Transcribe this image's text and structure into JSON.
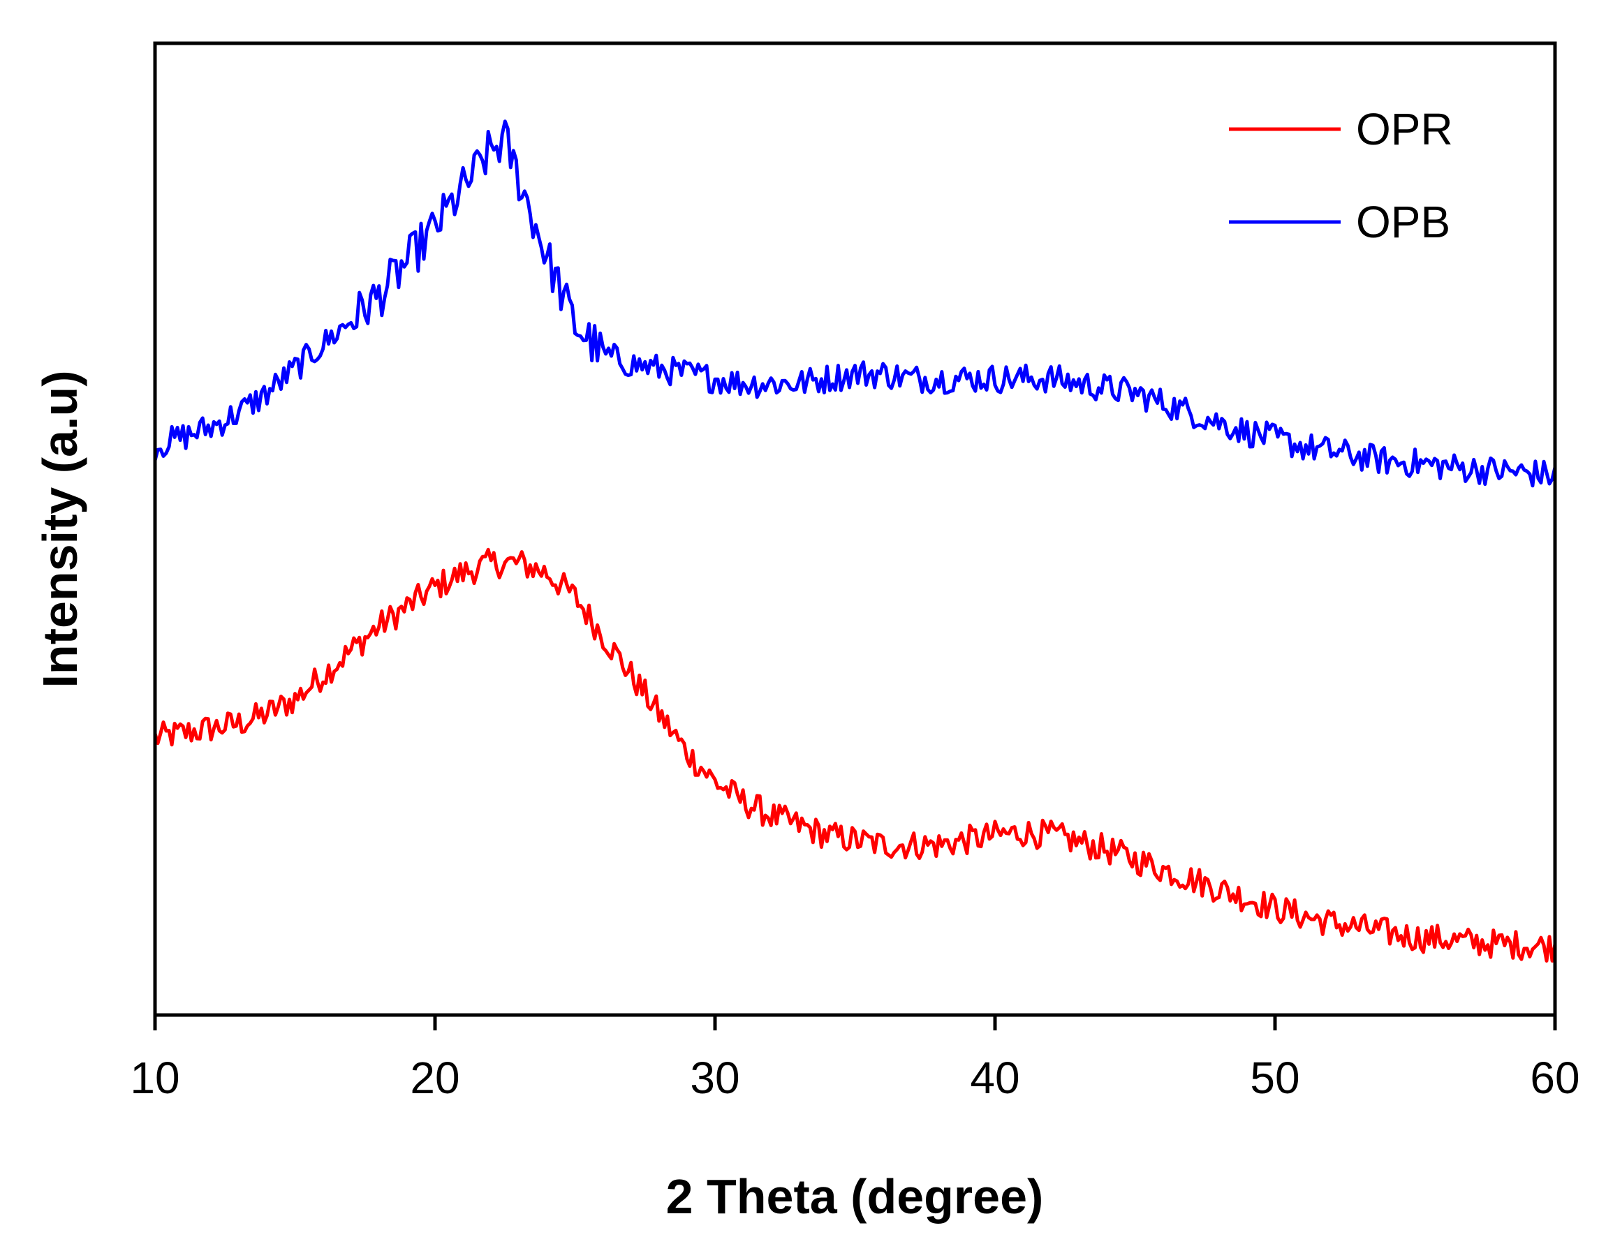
{
  "chart_data": {
    "type": "line",
    "title": "",
    "xlabel": "2 Theta (degree)",
    "ylabel": "Intensity (a.u)",
    "xlim": [
      10,
      60
    ],
    "ylim": [
      0,
      100
    ],
    "xticks": [
      10,
      20,
      30,
      40,
      50,
      60
    ],
    "xtick_labels": [
      "10",
      "20",
      "30",
      "40",
      "50",
      "60"
    ],
    "yticks": [],
    "grid": false,
    "legend_position": "top-right",
    "series": [
      {
        "name": "OPR",
        "color": "#ff0000",
        "x": [
          10,
          11,
          12,
          13,
          14,
          15,
          16,
          17,
          18,
          19,
          20,
          21,
          22,
          23,
          24,
          25,
          26,
          27,
          28,
          29,
          30,
          31,
          32,
          33,
          34,
          35,
          36,
          37,
          38,
          39,
          40,
          41,
          42,
          43,
          44,
          45,
          46,
          47,
          48,
          49,
          50,
          51,
          52,
          53,
          54,
          55,
          56,
          57,
          58,
          59,
          60
        ],
        "y": [
          28.5,
          29,
          29.5,
          30,
          31,
          32.5,
          35,
          37.5,
          40,
          42,
          44,
          45.5,
          46.5,
          46.5,
          45.5,
          43,
          39,
          35,
          31,
          27,
          24,
          22,
          20.5,
          19.5,
          18.5,
          18,
          17.5,
          17.5,
          17.5,
          18,
          18.5,
          18.8,
          18.5,
          17.8,
          17,
          16,
          15,
          14,
          13,
          12,
          11,
          10.2,
          9.5,
          9,
          8.5,
          8,
          7.8,
          7.5,
          7.3,
          7.2,
          7
        ]
      },
      {
        "name": "OPB",
        "color": "#0000ff",
        "x": [
          10,
          11,
          12,
          13,
          14,
          15,
          16,
          17,
          18,
          19,
          20,
          21,
          22,
          22.5,
          23,
          24,
          25,
          26,
          27,
          28,
          29,
          30,
          31,
          32,
          33,
          34,
          35,
          36,
          37,
          38,
          39,
          40,
          41,
          42,
          43,
          44,
          45,
          46,
          47,
          48,
          49,
          50,
          51,
          52,
          53,
          54,
          55,
          56,
          57,
          58,
          59,
          60
        ],
        "y": [
          58.5,
          59.5,
          60.5,
          62,
          64,
          66.5,
          69,
          71.5,
          74,
          77.5,
          81,
          85,
          89,
          90,
          86,
          78,
          71,
          68,
          67,
          66.5,
          66,
          65.5,
          65,
          65,
          65,
          65.5,
          66,
          66,
          65.5,
          65.5,
          65.5,
          65.5,
          65.5,
          65.5,
          65,
          64.5,
          64,
          63,
          62,
          61,
          60,
          59.3,
          58.5,
          58,
          57.5,
          57,
          56.8,
          56.5,
          56.2,
          56,
          55.8,
          55.5
        ]
      }
    ]
  }
}
